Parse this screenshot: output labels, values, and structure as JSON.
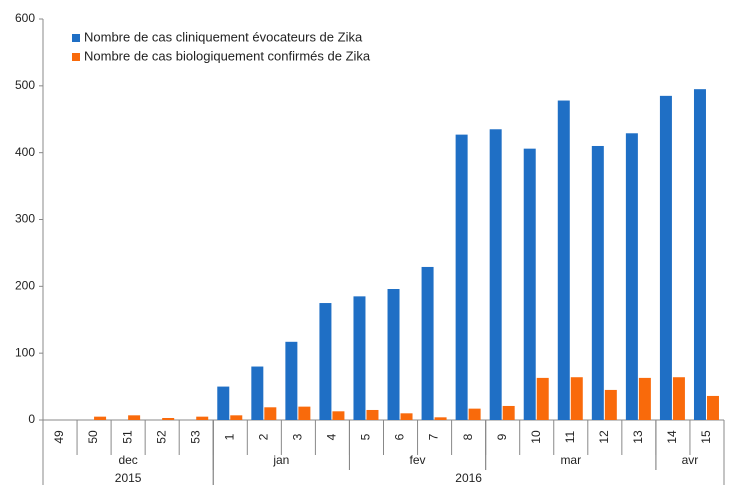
{
  "chart_data": {
    "type": "bar",
    "categories": [
      "49",
      "50",
      "51",
      "52",
      "53",
      "1",
      "2",
      "3",
      "4",
      "5",
      "6",
      "7",
      "8",
      "9",
      "10",
      "11",
      "12",
      "13",
      "14",
      "15"
    ],
    "series": [
      {
        "name": "Nombre de cas cliniquement évocateurs de Zika",
        "color": "#1f6fc5",
        "values": [
          0,
          0,
          0,
          0,
          0,
          50,
          80,
          117,
          175,
          185,
          196,
          229,
          427,
          435,
          406,
          478,
          410,
          429,
          485,
          495
        ]
      },
      {
        "name": "Nombre de cas biologiquement confirmés de Zika",
        "color": "#f96a0b",
        "values": [
          0,
          5,
          7,
          3,
          5,
          7,
          19,
          20,
          13,
          15,
          10,
          4,
          17,
          21,
          63,
          64,
          45,
          63,
          64,
          36
        ]
      }
    ],
    "months": [
      {
        "label": "dec",
        "from": "49",
        "to": "53"
      },
      {
        "label": "jan",
        "from": "1",
        "to": "4"
      },
      {
        "label": "fev",
        "from": "5",
        "to": "8"
      },
      {
        "label": "mar",
        "from": "9",
        "to": "13"
      },
      {
        "label": "avr",
        "from": "14",
        "to": "15"
      }
    ],
    "years": [
      {
        "label": "2015",
        "from": "49",
        "to": "53"
      },
      {
        "label": "2016",
        "from": "1",
        "to": "15"
      }
    ],
    "ylim": [
      0,
      600
    ],
    "yticks": [
      0,
      100,
      200,
      300,
      400,
      500,
      600
    ],
    "grid": false,
    "legend": "top-left"
  }
}
